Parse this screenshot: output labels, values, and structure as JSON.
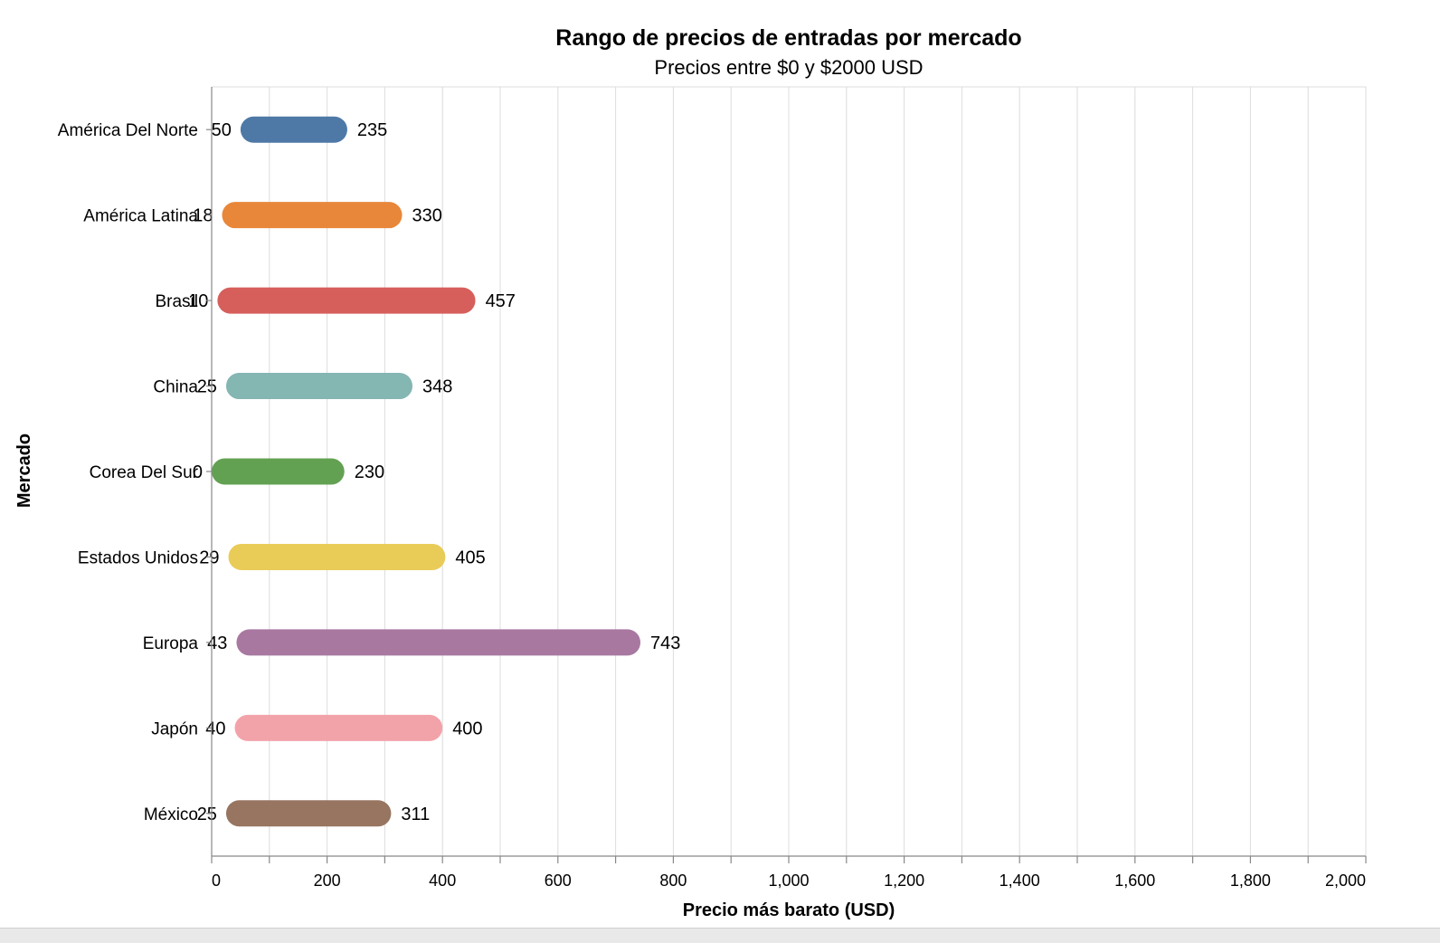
{
  "chart_data": {
    "type": "bar",
    "orientation": "horizontal",
    "style": "range",
    "title": "Rango de precios de entradas por mercado",
    "subtitle": "Precios entre $0 y $2000 USD",
    "xlabel": "Precio más barato (USD)",
    "ylabel": "Mercado",
    "xlim": [
      0,
      2000
    ],
    "x_ticks": [
      0,
      200,
      400,
      600,
      800,
      1000,
      1200,
      1400,
      1600,
      1800,
      2000
    ],
    "x_tick_labels": [
      "0",
      "200",
      "400",
      "600",
      "800",
      "1,000",
      "1,200",
      "1,400",
      "1,600",
      "1,800",
      "2,000"
    ],
    "grid": true,
    "categories": [
      "América Del Norte",
      "América Latina",
      "Brasil",
      "China",
      "Corea Del Sur",
      "Estados Unidos",
      "Europa",
      "Japón",
      "México"
    ],
    "min_values": [
      50,
      18,
      10,
      25,
      0,
      29,
      43,
      40,
      25
    ],
    "max_values": [
      235,
      330,
      457,
      348,
      230,
      405,
      743,
      400,
      311
    ],
    "colors": [
      "#4e79a7",
      "#e8873a",
      "#d65f5b",
      "#84b6b2",
      "#62a152",
      "#e9cb58",
      "#a878a1",
      "#f2a3a9",
      "#977560"
    ]
  }
}
